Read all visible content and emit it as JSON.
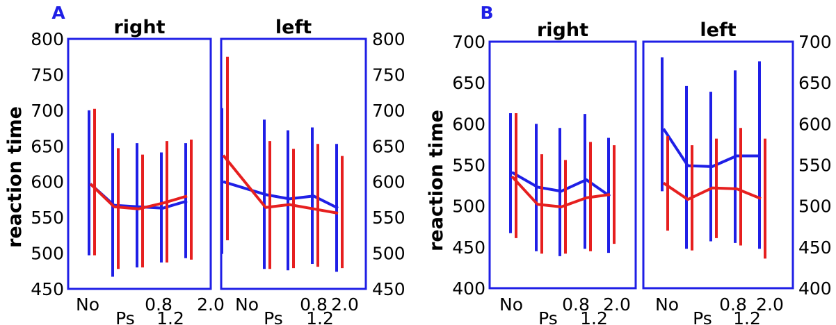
{
  "colors": {
    "frame": "#1f1fe6",
    "series_blue": "#1f1fe6",
    "series_red": "#e61f1f"
  },
  "chart_data": [
    {
      "type": "line",
      "label": "A",
      "ylabel": "reaction time",
      "ylim": [
        450,
        800
      ],
      "yticks": [
        "450",
        "500",
        "550",
        "600",
        "650",
        "700",
        "750",
        "800"
      ],
      "xticks": [
        "No",
        "0.8",
        "2.0"
      ],
      "xticks_lower": [
        "Ps",
        "1.2"
      ],
      "panels": [
        {
          "title": "right",
          "series": [
            {
              "color": "blue",
              "x": [
                0,
                1,
                2,
                3,
                4
              ],
              "values": [
                597,
                567,
                565,
                563,
                573
              ],
              "lower": [
                497,
                467,
                480,
                487,
                493
              ],
              "upper": [
                700,
                668,
                654,
                641,
                654
              ]
            },
            {
              "color": "red",
              "x": [
                0,
                1,
                2,
                3,
                4
              ],
              "values": [
                597,
                565,
                562,
                570,
                580
              ],
              "lower": [
                497,
                478,
                480,
                487,
                491
              ],
              "upper": [
                702,
                647,
                638,
                657,
                659
              ]
            }
          ]
        },
        {
          "title": "left",
          "series": [
            {
              "color": "blue",
              "x": [
                0,
                1,
                2,
                3,
                4
              ],
              "values": [
                600,
                582,
                576,
                580,
                563
              ],
              "lower": [
                499,
                478,
                476,
                485,
                474
              ],
              "upper": [
                703,
                687,
                672,
                676,
                653
              ]
            },
            {
              "color": "red",
              "x": [
                0,
                1,
                2,
                3,
                4
              ],
              "values": [
                637,
                564,
                568,
                562,
                556
              ],
              "lower": [
                518,
                478,
                479,
                481,
                479
              ],
              "upper": [
                775,
                657,
                646,
                653,
                636
              ]
            }
          ]
        }
      ]
    },
    {
      "type": "line",
      "label": "B",
      "ylabel": "reaction time",
      "ylim": [
        400,
        700
      ],
      "yticks": [
        "400",
        "450",
        "500",
        "550",
        "600",
        "650",
        "700"
      ],
      "xticks": [
        "No",
        "0.8",
        "2.0"
      ],
      "xticks_lower": [
        "Ps",
        "1.2"
      ],
      "panels": [
        {
          "title": "right",
          "series": [
            {
              "color": "blue",
              "x": [
                0,
                1,
                2,
                3,
                4
              ],
              "values": [
                541,
                523,
                518,
                532,
                512
              ],
              "lower": [
                467,
                445,
                439,
                448,
                443
              ],
              "upper": [
                613,
                600,
                595,
                612,
                583
              ]
            },
            {
              "color": "red",
              "x": [
                0,
                1,
                2,
                3,
                4
              ],
              "values": [
                536,
                502,
                499,
                510,
                514
              ],
              "lower": [
                461,
                442,
                442,
                445,
                454
              ],
              "upper": [
                613,
                563,
                556,
                578,
                574
              ]
            }
          ]
        },
        {
          "title": "left",
          "series": [
            {
              "color": "blue",
              "x": [
                0,
                1,
                2,
                3,
                4
              ],
              "values": [
                594,
                549,
                548,
                561,
                561
              ],
              "lower": [
                518,
                448,
                457,
                455,
                448
              ],
              "upper": [
                681,
                646,
                639,
                665,
                676
              ]
            },
            {
              "color": "red",
              "x": [
                0,
                1,
                2,
                3,
                4
              ],
              "values": [
                528,
                508,
                522,
                521,
                509
              ],
              "lower": [
                470,
                446,
                461,
                452,
                436
              ],
              "upper": [
                585,
                574,
                582,
                595,
                582
              ]
            }
          ]
        }
      ]
    }
  ]
}
